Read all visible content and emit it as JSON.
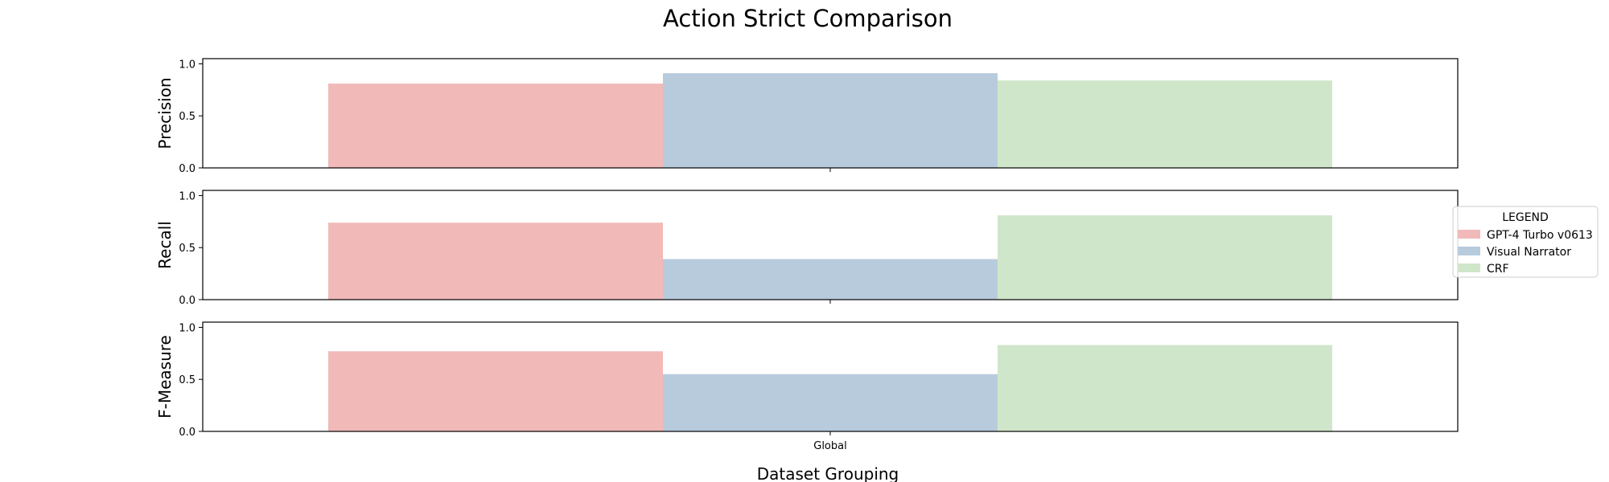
{
  "chart_data": {
    "type": "bar",
    "title": "Action Strict Comparison",
    "xlabel": "Dataset Grouping",
    "categories": [
      "Global"
    ],
    "ylim": [
      0,
      1.05
    ],
    "yticks": [
      "0.0",
      "0.5",
      "1.0"
    ],
    "legend": {
      "title": "LEGEND",
      "placement": "right",
      "entries": [
        {
          "name": "GPT-4 Turbo v0613",
          "color": "#f1b9b8"
        },
        {
          "name": "Visual Narrator",
          "color": "#b8cbdd"
        },
        {
          "name": "CRF",
          "color": "#d0e6ca"
        }
      ]
    },
    "panels": [
      {
        "ylabel": "Precision",
        "series": [
          {
            "name": "GPT-4 Turbo v0613",
            "values": [
              0.81
            ]
          },
          {
            "name": "Visual Narrator",
            "values": [
              0.91
            ]
          },
          {
            "name": "CRF",
            "values": [
              0.84
            ]
          }
        ]
      },
      {
        "ylabel": "Recall",
        "series": [
          {
            "name": "GPT-4 Turbo v0613",
            "values": [
              0.74
            ]
          },
          {
            "name": "Visual Narrator",
            "values": [
              0.39
            ]
          },
          {
            "name": "CRF",
            "values": [
              0.81
            ]
          }
        ]
      },
      {
        "ylabel": "F-Measure",
        "series": [
          {
            "name": "GPT-4 Turbo v0613",
            "values": [
              0.77
            ]
          },
          {
            "name": "Visual Narrator",
            "values": [
              0.55
            ]
          },
          {
            "name": "CRF",
            "values": [
              0.83
            ]
          }
        ]
      }
    ]
  }
}
